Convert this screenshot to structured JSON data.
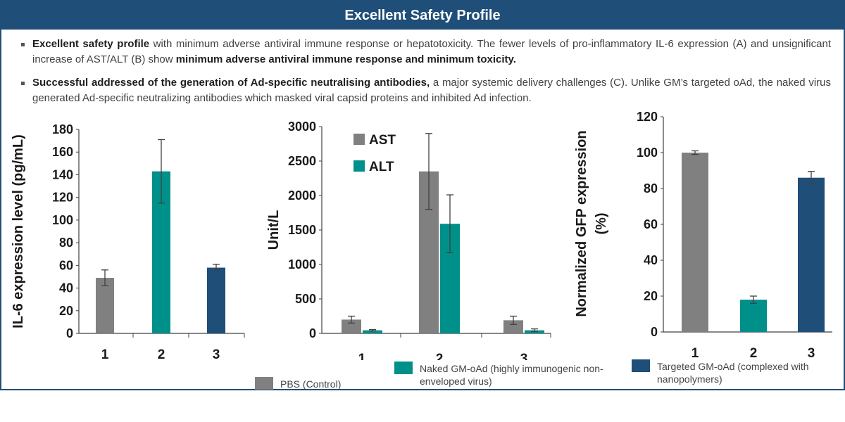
{
  "header": {
    "title": "Excellent Safety Profile"
  },
  "bullets": [
    {
      "bold1": "Excellent safety profile",
      "text1": " with minimum adverse antiviral immune response or hepatotoxicity. The fewer levels of pro-inflammatory IL-6 expression (A) and unsignificant increase of AST/ALT (B) show ",
      "bold2": "minimum adverse antiviral immune response and minimum toxicity.",
      "text2": ""
    },
    {
      "bold1": "Successful addressed of the generation of Ad-specific neutralising antibodies,",
      "text1": " a major systemic delivery challenges (C). Unlike GM’s targeted oAd, the naked virus generated Ad-specific neutralizing antibodies which masked viral capsid proteins and inhibited Ad infection.",
      "bold2": "",
      "text2": ""
    }
  ],
  "colors": {
    "gray": "#808080",
    "teal": "#00908a",
    "navy": "#1f4e79",
    "header": "#1f4e79"
  },
  "chart_data": [
    {
      "type": "bar",
      "categories": [
        "1",
        "2",
        "3"
      ],
      "values": [
        49,
        143,
        58
      ],
      "errors": [
        7,
        28,
        3
      ],
      "colors": [
        "#808080",
        "#00908a",
        "#1f4e79"
      ],
      "title": "",
      "xlabel": "",
      "ylabel": "IL-6 expression level (pg/mL)",
      "ylim": [
        0,
        180
      ],
      "yticks": [
        "0",
        "20",
        "40",
        "60",
        "80",
        "100",
        "120",
        "140",
        "160",
        "180"
      ],
      "grid": false
    },
    {
      "type": "bar",
      "categories": [
        "1",
        "2",
        "3"
      ],
      "series": [
        {
          "name": "AST",
          "values": [
            200,
            2350,
            190
          ],
          "errors": [
            50,
            550,
            60
          ],
          "color": "#808080"
        },
        {
          "name": "ALT",
          "values": [
            45,
            1590,
            45
          ],
          "errors": [
            10,
            420,
            20
          ],
          "color": "#00908a"
        }
      ],
      "title": "",
      "xlabel": "",
      "ylabel": "Unit/L",
      "ylim": [
        0,
        3000
      ],
      "yticks": [
        "0",
        "500",
        "1000",
        "1500",
        "2000",
        "2500",
        "3000"
      ],
      "legend": "top-left",
      "grid": false
    },
    {
      "type": "bar",
      "categories": [
        "1",
        "2",
        "3"
      ],
      "values": [
        100,
        18,
        86
      ],
      "errors": [
        1,
        2,
        3.5
      ],
      "colors": [
        "#808080",
        "#00908a",
        "#1f4e79"
      ],
      "title": "",
      "xlabel": "",
      "ylabel": "Normalized GFP expression (%)",
      "ylim": [
        0,
        120
      ],
      "yticks": [
        "0",
        "20",
        "40",
        "60",
        "80",
        "100",
        "120"
      ],
      "grid": false
    }
  ],
  "legend": [
    {
      "label": "PBS (Control)",
      "color": "#808080"
    },
    {
      "label": "Naked GM-oAd (highly immunogenic non-enveloped virus)",
      "color": "#00908a"
    },
    {
      "label": "Targeted GM-oAd (complexed with nanopolymers)",
      "color": "#1f4e79"
    }
  ]
}
